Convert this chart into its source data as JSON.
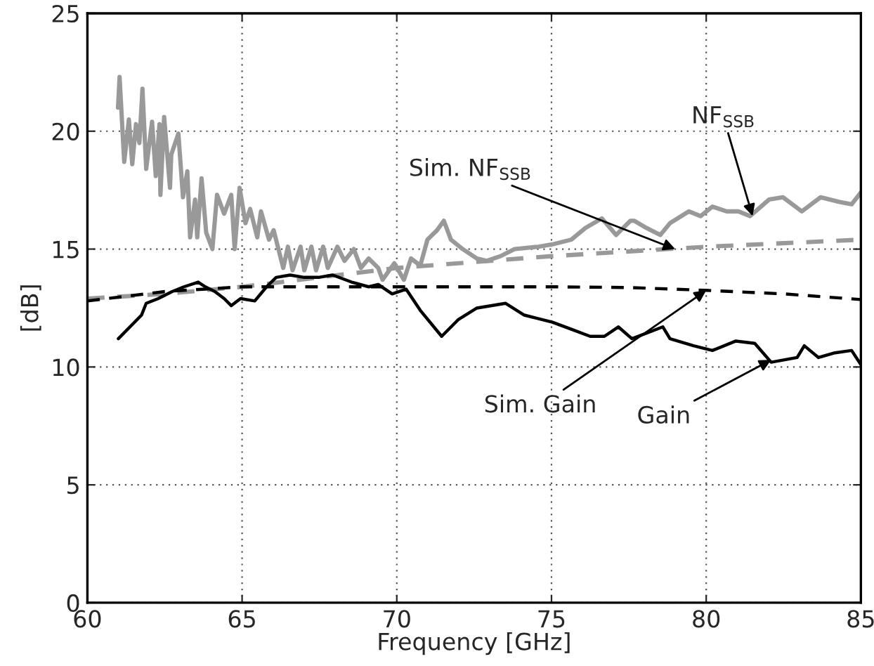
{
  "chart_data": {
    "type": "line",
    "xlabel": "Frequency [GHz]",
    "ylabel": "[dB]",
    "xlim": [
      60,
      85
    ],
    "ylim": [
      0,
      25
    ],
    "xticks": [
      60,
      65,
      70,
      75,
      80,
      85
    ],
    "yticks": [
      0,
      5,
      10,
      15,
      20,
      25
    ],
    "grid": true,
    "marker": "none",
    "series": [
      {
        "color": "#999999",
        "line_style": "solid",
        "x": [
          60.99,
          61.04,
          61.19,
          61.34,
          61.45,
          61.57,
          61.68,
          61.78,
          61.9,
          62.09,
          62.21,
          62.33,
          62.36,
          62.48,
          62.67,
          62.71,
          62.94,
          63.09,
          63.23,
          63.32,
          63.48,
          63.55,
          63.69,
          63.84,
          64.04,
          64.19,
          64.42,
          64.65,
          64.76,
          64.92,
          65.11,
          65.26,
          65.49,
          65.61,
          65.87,
          66.02,
          66.33,
          66.48,
          66.63,
          66.89,
          67.01,
          67.24,
          67.39,
          67.62,
          67.77,
          68.08,
          68.31,
          68.61,
          68.84,
          69.09,
          69.4,
          69.54,
          69.92,
          70.23,
          70.46,
          70.76,
          70.99,
          71.3,
          71.52,
          71.75,
          72.13,
          72.59,
          72.9,
          73.35,
          73.81,
          74.57,
          75.03,
          75.64,
          76.1,
          76.63,
          77.09,
          77.55,
          77.68,
          78.06,
          78.52,
          78.83,
          79.44,
          79.82,
          80.2,
          80.66,
          81.04,
          81.42,
          82.03,
          82.48,
          83.09,
          83.7,
          84.31,
          84.7,
          85.0
        ],
        "values": [
          21.0,
          22.3,
          18.7,
          20.5,
          18.6,
          20.3,
          19.5,
          21.8,
          18.4,
          20.4,
          18.1,
          20.3,
          17.3,
          20.6,
          17.6,
          19.0,
          19.9,
          17.2,
          18.3,
          15.5,
          17.1,
          15.5,
          18.0,
          15.7,
          15.0,
          17.3,
          16.5,
          17.3,
          15.0,
          17.6,
          16.1,
          16.7,
          15.5,
          16.6,
          15.4,
          15.8,
          14.2,
          15.1,
          14.1,
          15.1,
          14.1,
          15.1,
          14.1,
          15.1,
          14.2,
          15.1,
          14.5,
          15.0,
          14.2,
          14.6,
          14.2,
          13.7,
          14.4,
          13.7,
          14.6,
          14.3,
          15.4,
          15.8,
          16.2,
          15.4,
          15.0,
          14.6,
          14.5,
          14.7,
          15.0,
          15.1,
          15.2,
          15.4,
          15.9,
          16.3,
          15.6,
          16.2,
          16.2,
          15.9,
          15.6,
          16.1,
          16.6,
          16.4,
          16.8,
          16.6,
          16.6,
          16.4,
          17.1,
          17.2,
          16.6,
          17.2,
          17.0,
          16.9,
          17.4
        ]
      },
      {
        "color": "#999999",
        "line_style": "dashed",
        "x": [
          60,
          62.5,
          65,
          67.5,
          70,
          72.5,
          75,
          77.5,
          80,
          82.5,
          85
        ],
        "values": [
          12.9,
          13.1,
          13.4,
          13.8,
          14.2,
          14.45,
          14.7,
          14.9,
          15.1,
          15.25,
          15.4
        ]
      },
      {
        "color": "#000000",
        "line_style": "solid",
        "x": [
          61.0,
          61.75,
          61.9,
          62.29,
          62.74,
          63.12,
          63.58,
          63.81,
          64.12,
          64.42,
          64.65,
          64.95,
          65.41,
          65.79,
          66.1,
          66.55,
          67.01,
          67.47,
          67.93,
          68.54,
          69.09,
          69.4,
          69.85,
          70.3,
          70.76,
          71.45,
          71.98,
          72.59,
          73.51,
          74.12,
          75.03,
          75.64,
          76.25,
          76.71,
          77.16,
          77.6,
          78.6,
          78.83,
          79.59,
          80.2,
          80.96,
          81.57,
          82.1,
          82.94,
          83.17,
          83.63,
          84.16,
          84.7,
          85.0
        ],
        "values": [
          11.2,
          12.2,
          12.7,
          12.9,
          13.2,
          13.4,
          13.6,
          13.4,
          13.2,
          12.9,
          12.6,
          12.9,
          12.8,
          13.4,
          13.8,
          13.9,
          13.8,
          13.8,
          13.9,
          13.6,
          13.4,
          13.5,
          13.1,
          13.3,
          12.4,
          11.3,
          12.0,
          12.5,
          12.7,
          12.2,
          11.9,
          11.6,
          11.3,
          11.3,
          11.7,
          11.2,
          11.7,
          11.2,
          10.9,
          10.7,
          11.1,
          11.0,
          10.2,
          10.4,
          10.9,
          10.4,
          10.6,
          10.7,
          10.1
        ]
      },
      {
        "color": "#000000",
        "line_style": "dashed",
        "x": [
          60,
          62.5,
          65,
          70,
          75,
          77.5,
          80,
          82.5,
          85
        ],
        "values": [
          12.8,
          13.2,
          13.4,
          13.4,
          13.4,
          13.37,
          13.25,
          13.1,
          12.86
        ]
      }
    ],
    "annotations": [
      {
        "text": "Sim. NF$_{SSB}$",
        "x": 79,
        "y": 15.0
      },
      {
        "text": "NF$_{SSB}$",
        "x": 81.5,
        "y": 16.4
      },
      {
        "text": "Sim. Gain",
        "x": 80,
        "y": 13.25
      },
      {
        "text": "Gain",
        "x": 82.1,
        "y": 10.3
      }
    ]
  }
}
